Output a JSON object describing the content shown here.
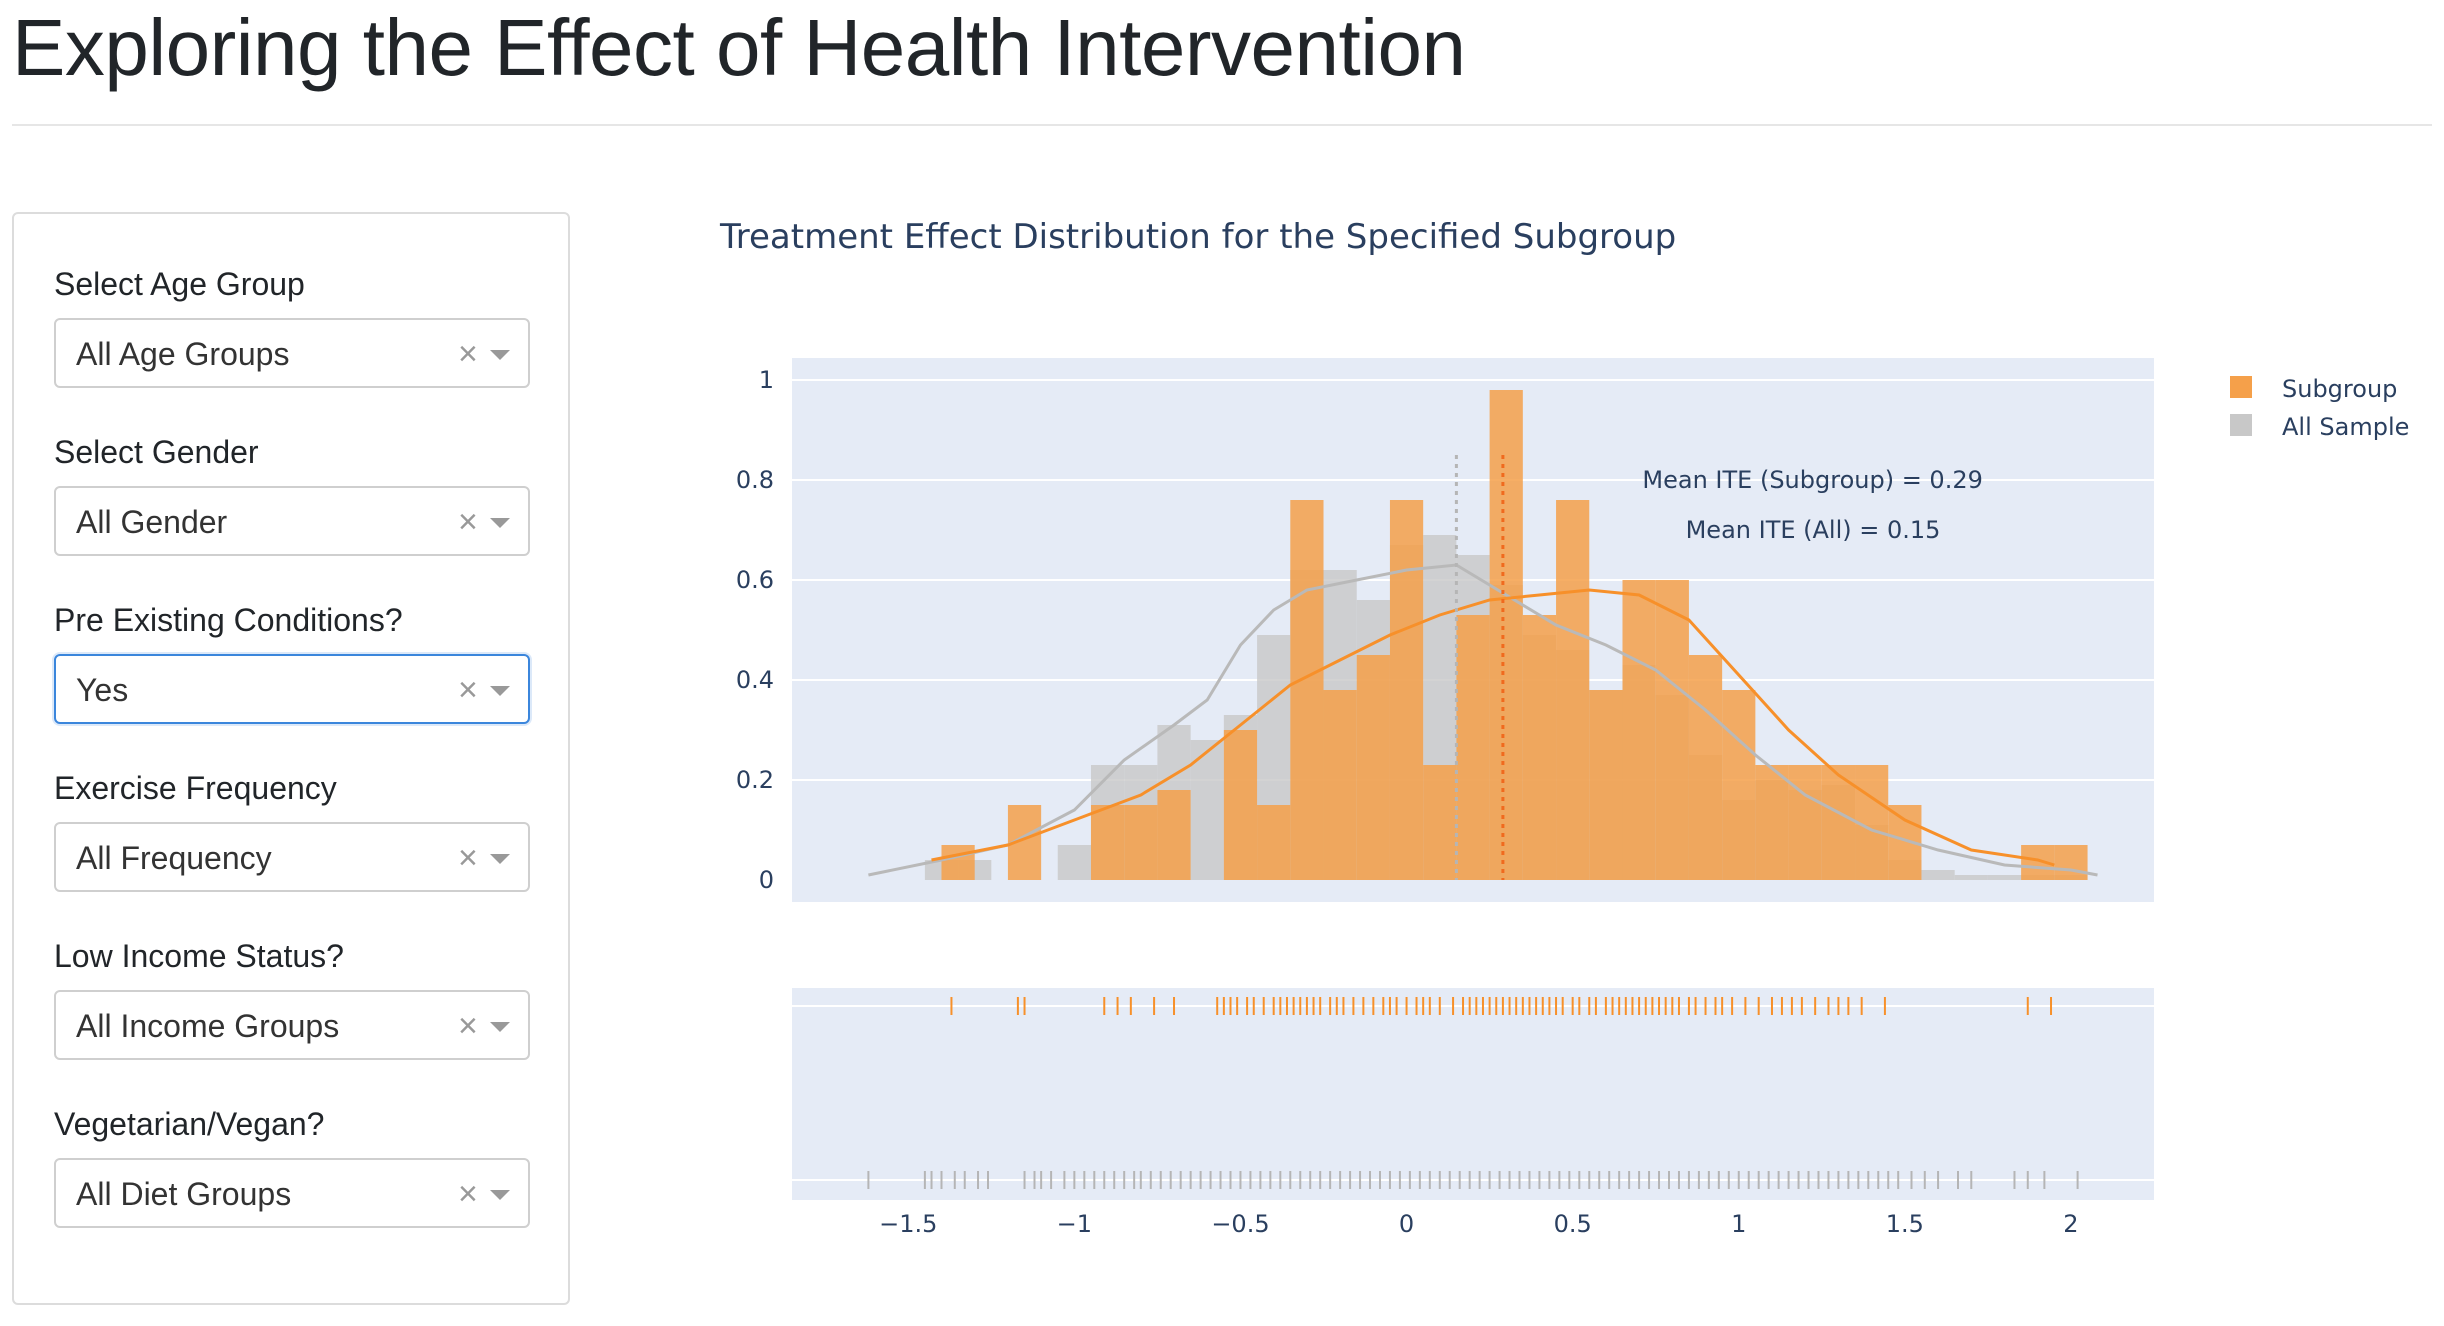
{
  "page": {
    "title": "Exploring the Effect of Health Intervention"
  },
  "filters": [
    {
      "key": "age",
      "label": "Select Age Group",
      "value": "All Age Groups",
      "focused": false
    },
    {
      "key": "gender",
      "label": "Select Gender",
      "value": "All Gender",
      "focused": false
    },
    {
      "key": "preexisting",
      "label": "Pre Existing Conditions?",
      "value": "Yes",
      "focused": true
    },
    {
      "key": "exercise",
      "label": "Exercise Frequency",
      "value": "All Frequency",
      "focused": false
    },
    {
      "key": "income",
      "label": "Low Income Status?",
      "value": "All Income Groups",
      "focused": false
    },
    {
      "key": "diet",
      "label": "Vegetarian/Vegan?",
      "value": "All Diet Groups",
      "focused": false
    }
  ],
  "icons": {
    "clear": "close-icon",
    "dropdown": "chevron-down-icon"
  },
  "colors": {
    "subgroup": "#f5a04a",
    "all_sample": "#c8c8c8",
    "plot_bg": "#e5ebf6",
    "focus_border": "#3b86dc",
    "title_text": "#2a3f5f"
  },
  "chart_data": {
    "type": "histogram",
    "title": "Treatment Effect Distribution for the Specified Subgroup",
    "legend": {
      "position": "top-right",
      "entries": [
        "Subgroup",
        "All Sample"
      ]
    },
    "xlim": [
      -1.85,
      2.25
    ],
    "ylim": [
      0,
      1
    ],
    "x_ticks": [
      "−1.5",
      "−1",
      "−0.5",
      "0",
      "0.5",
      "1",
      "1.5",
      "2"
    ],
    "x_tick_values": [
      -1.5,
      -1,
      -0.5,
      0,
      0.5,
      1,
      1.5,
      2
    ],
    "y_ticks": [
      "0",
      "0.2",
      "0.4",
      "0.6",
      "0.8",
      "1"
    ],
    "y_tick_values": [
      0,
      0.2,
      0.4,
      0.6,
      0.8,
      1
    ],
    "grid": true,
    "annotations": [
      {
        "text": "Mean ITE (Subgroup) = 0.29"
      },
      {
        "text": "Mean ITE (All) = 0.15"
      }
    ],
    "mean_lines": [
      {
        "series": "Subgroup",
        "x": 0.29,
        "ymax": 0.85
      },
      {
        "series": "All Sample",
        "x": 0.15,
        "ymax": 0.85
      }
    ],
    "series": [
      {
        "name": "All Sample",
        "bins": [
          [
            -1.45,
            -1.35,
            0.04
          ],
          [
            -1.35,
            -1.25,
            0.04
          ],
          [
            -1.05,
            -0.95,
            0.07
          ],
          [
            -0.95,
            -0.85,
            0.23
          ],
          [
            -0.85,
            -0.75,
            0.23
          ],
          [
            -0.75,
            -0.65,
            0.31
          ],
          [
            -0.65,
            -0.55,
            0.28
          ],
          [
            -0.55,
            -0.45,
            0.33
          ],
          [
            -0.45,
            -0.35,
            0.49
          ],
          [
            -0.35,
            -0.25,
            0.62
          ],
          [
            -0.25,
            -0.15,
            0.62
          ],
          [
            -0.15,
            -0.05,
            0.56
          ],
          [
            -0.05,
            0.05,
            0.67
          ],
          [
            0.05,
            0.15,
            0.69
          ],
          [
            0.15,
            0.25,
            0.65
          ],
          [
            0.25,
            0.35,
            0.59
          ],
          [
            0.35,
            0.45,
            0.49
          ],
          [
            0.45,
            0.55,
            0.46
          ],
          [
            0.55,
            0.65,
            0.38
          ],
          [
            0.65,
            0.75,
            0.43
          ],
          [
            0.75,
            0.85,
            0.37
          ],
          [
            0.85,
            0.95,
            0.25
          ],
          [
            0.95,
            1.05,
            0.16
          ],
          [
            1.05,
            1.15,
            0.2
          ],
          [
            1.15,
            1.25,
            0.18
          ],
          [
            1.25,
            1.35,
            0.19
          ],
          [
            1.35,
            1.45,
            0.11
          ],
          [
            1.45,
            1.55,
            0.04
          ],
          [
            1.55,
            1.65,
            0.02
          ],
          [
            1.65,
            1.75,
            0.01
          ],
          [
            1.75,
            1.85,
            0.01
          ],
          [
            1.85,
            1.95,
            0.01
          ],
          [
            1.95,
            2.05,
            0.01
          ]
        ],
        "kde": [
          [
            -1.62,
            0.01
          ],
          [
            -1.4,
            0.04
          ],
          [
            -1.2,
            0.07
          ],
          [
            -1.0,
            0.14
          ],
          [
            -0.85,
            0.24
          ],
          [
            -0.7,
            0.31
          ],
          [
            -0.6,
            0.36
          ],
          [
            -0.5,
            0.47
          ],
          [
            -0.4,
            0.54
          ],
          [
            -0.3,
            0.58
          ],
          [
            -0.15,
            0.6
          ],
          [
            0.0,
            0.62
          ],
          [
            0.15,
            0.63
          ],
          [
            0.3,
            0.57
          ],
          [
            0.45,
            0.51
          ],
          [
            0.6,
            0.47
          ],
          [
            0.75,
            0.42
          ],
          [
            0.9,
            0.34
          ],
          [
            1.05,
            0.25
          ],
          [
            1.2,
            0.17
          ],
          [
            1.4,
            0.1
          ],
          [
            1.6,
            0.06
          ],
          [
            1.8,
            0.03
          ],
          [
            2.0,
            0.02
          ],
          [
            2.08,
            0.01
          ]
        ],
        "rug": [
          -1.62,
          -1.45,
          -1.43,
          -1.4,
          -1.36,
          -1.33,
          -1.29,
          -1.26,
          -1.15,
          -1.12,
          -1.1,
          -1.07,
          -1.03,
          -1.0,
          -0.97,
          -0.94,
          -0.91,
          -0.88,
          -0.85,
          -0.82,
          -0.8,
          -0.77,
          -0.74,
          -0.71,
          -0.68,
          -0.65,
          -0.62,
          -0.59,
          -0.56,
          -0.53,
          -0.5,
          -0.47,
          -0.44,
          -0.41,
          -0.38,
          -0.35,
          -0.32,
          -0.29,
          -0.26,
          -0.23,
          -0.2,
          -0.17,
          -0.14,
          -0.11,
          -0.08,
          -0.05,
          -0.02,
          0.01,
          0.04,
          0.07,
          0.1,
          0.13,
          0.16,
          0.19,
          0.22,
          0.25,
          0.28,
          0.31,
          0.34,
          0.37,
          0.4,
          0.43,
          0.46,
          0.49,
          0.52,
          0.55,
          0.58,
          0.61,
          0.64,
          0.67,
          0.7,
          0.73,
          0.76,
          0.79,
          0.82,
          0.85,
          0.88,
          0.91,
          0.94,
          0.97,
          1.0,
          1.03,
          1.06,
          1.09,
          1.12,
          1.15,
          1.18,
          1.21,
          1.24,
          1.27,
          1.3,
          1.33,
          1.36,
          1.39,
          1.42,
          1.45,
          1.48,
          1.52,
          1.56,
          1.6,
          1.66,
          1.7,
          1.83,
          1.87,
          1.92,
          2.02
        ]
      },
      {
        "name": "Subgroup",
        "bins": [
          [
            -1.4,
            -1.3,
            0.07
          ],
          [
            -1.2,
            -1.1,
            0.15
          ],
          [
            -0.95,
            -0.85,
            0.15
          ],
          [
            -0.85,
            -0.75,
            0.15
          ],
          [
            -0.75,
            -0.65,
            0.18
          ],
          [
            -0.55,
            -0.45,
            0.3
          ],
          [
            -0.45,
            -0.35,
            0.15
          ],
          [
            -0.35,
            -0.25,
            0.76
          ],
          [
            -0.25,
            -0.15,
            0.38
          ],
          [
            -0.15,
            -0.05,
            0.45
          ],
          [
            -0.05,
            0.05,
            0.76
          ],
          [
            0.05,
            0.15,
            0.23
          ],
          [
            0.15,
            0.25,
            0.53
          ],
          [
            0.25,
            0.35,
            0.98
          ],
          [
            0.35,
            0.45,
            0.53
          ],
          [
            0.45,
            0.55,
            0.76
          ],
          [
            0.55,
            0.65,
            0.38
          ],
          [
            0.65,
            0.75,
            0.6
          ],
          [
            0.75,
            0.85,
            0.6
          ],
          [
            0.85,
            0.95,
            0.45
          ],
          [
            0.95,
            1.05,
            0.38
          ],
          [
            1.05,
            1.15,
            0.23
          ],
          [
            1.15,
            1.25,
            0.23
          ],
          [
            1.25,
            1.35,
            0.23
          ],
          [
            1.35,
            1.45,
            0.23
          ],
          [
            1.45,
            1.55,
            0.15
          ],
          [
            1.85,
            1.95,
            0.07
          ],
          [
            1.95,
            2.05,
            0.07
          ]
        ],
        "kde": [
          [
            -1.43,
            0.04
          ],
          [
            -1.2,
            0.07
          ],
          [
            -1.0,
            0.12
          ],
          [
            -0.8,
            0.17
          ],
          [
            -0.65,
            0.23
          ],
          [
            -0.5,
            0.31
          ],
          [
            -0.35,
            0.39
          ],
          [
            -0.2,
            0.44
          ],
          [
            -0.05,
            0.49
          ],
          [
            0.1,
            0.53
          ],
          [
            0.25,
            0.56
          ],
          [
            0.4,
            0.57
          ],
          [
            0.55,
            0.58
          ],
          [
            0.7,
            0.57
          ],
          [
            0.85,
            0.52
          ],
          [
            1.0,
            0.41
          ],
          [
            1.15,
            0.3
          ],
          [
            1.3,
            0.21
          ],
          [
            1.5,
            0.12
          ],
          [
            1.7,
            0.06
          ],
          [
            1.9,
            0.04
          ],
          [
            1.95,
            0.03
          ]
        ],
        "rug": [
          -1.37,
          -1.17,
          -1.15,
          -0.91,
          -0.87,
          -0.83,
          -0.76,
          -0.7,
          -0.57,
          -0.55,
          -0.53,
          -0.51,
          -0.48,
          -0.46,
          -0.43,
          -0.4,
          -0.38,
          -0.36,
          -0.34,
          -0.32,
          -0.3,
          -0.28,
          -0.26,
          -0.23,
          -0.21,
          -0.19,
          -0.16,
          -0.13,
          -0.1,
          -0.07,
          -0.05,
          -0.03,
          0.0,
          0.03,
          0.05,
          0.07,
          0.1,
          0.14,
          0.17,
          0.19,
          0.21,
          0.23,
          0.25,
          0.27,
          0.29,
          0.31,
          0.33,
          0.35,
          0.37,
          0.39,
          0.41,
          0.43,
          0.45,
          0.47,
          0.5,
          0.52,
          0.55,
          0.57,
          0.6,
          0.62,
          0.64,
          0.66,
          0.68,
          0.7,
          0.72,
          0.74,
          0.76,
          0.78,
          0.8,
          0.82,
          0.85,
          0.87,
          0.9,
          0.93,
          0.95,
          0.98,
          1.02,
          1.06,
          1.1,
          1.13,
          1.16,
          1.19,
          1.23,
          1.27,
          1.3,
          1.33,
          1.37,
          1.44,
          1.87,
          1.94
        ]
      }
    ]
  }
}
